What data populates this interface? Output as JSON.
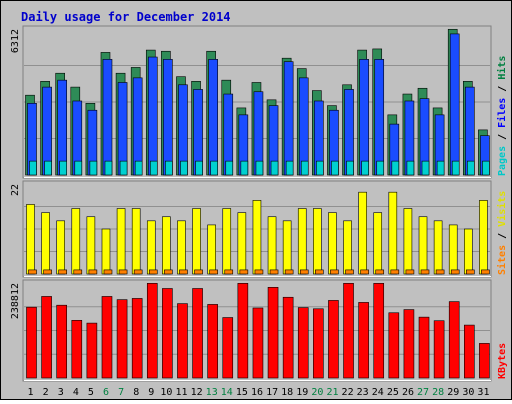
{
  "chart_data": {
    "type": "bar",
    "title": "Daily usage for December 2014",
    "categories": [
      "1",
      "2",
      "3",
      "4",
      "5",
      "6",
      "7",
      "8",
      "9",
      "10",
      "11",
      "12",
      "13",
      "14",
      "15",
      "16",
      "17",
      "18",
      "19",
      "20",
      "21",
      "22",
      "23",
      "24",
      "25",
      "26",
      "27",
      "28",
      "29",
      "30",
      "31"
    ],
    "weekend_days": [
      6,
      7,
      13,
      14,
      20,
      21,
      27,
      28
    ],
    "panels": [
      {
        "name": "pages-files-hits",
        "ymax_label": "6312",
        "ylim": [
          0,
          6312
        ],
        "legend": [
          {
            "label": "Pages",
            "color": "#00c8c8"
          },
          {
            "label": "Files",
            "color": "#0000ff"
          },
          {
            "label": "Hits",
            "color": "#008040"
          }
        ],
        "series": [
          {
            "name": "Hits",
            "color": "#2e8b57",
            "values": [
              3450,
              4050,
              4400,
              3800,
              3100,
              5300,
              4400,
              4650,
              5400,
              5350,
              4250,
              4050,
              5350,
              4100,
              2900,
              4000,
              3250,
              5050,
              4600,
              3650,
              3000,
              3900,
              5400,
              5450,
              2600,
              3500,
              3750,
              2900,
              6300,
              4050,
              1950
            ]
          },
          {
            "name": "Files",
            "color": "#1a4cff",
            "values": [
              3100,
              3800,
              4100,
              3200,
              2800,
              5000,
              4000,
              4200,
              5100,
              5000,
              3900,
              3700,
              5000,
              3500,
              2600,
              3600,
              3000,
              4900,
              4200,
              3200,
              2800,
              3700,
              5000,
              5000,
              2200,
              3200,
              3300,
              2600,
              6100,
              3800,
              1700
            ]
          },
          {
            "name": "Pages",
            "color": "#00d0d0",
            "values": [
              200,
              200,
              200,
              200,
              200,
              200,
              200,
              200,
              200,
              200,
              200,
              200,
              200,
              200,
              200,
              200,
              200,
              200,
              200,
              200,
              200,
              200,
              200,
              200,
              200,
              200,
              200,
              200,
              200,
              200,
              200
            ]
          }
        ]
      },
      {
        "name": "sites-visits",
        "ymax_label": "22",
        "ylim": [
          0,
          22
        ],
        "legend": [
          {
            "label": "Sites",
            "color": "#ff8000"
          },
          {
            "label": "Visits",
            "color": "#e0e000"
          }
        ],
        "series": [
          {
            "name": "Visits",
            "color": "#ffff00",
            "values": [
              17,
              15,
              13,
              16,
              14,
              11,
              16,
              16,
              13,
              14,
              13,
              16,
              12,
              16,
              15,
              18,
              14,
              13,
              16,
              16,
              15,
              13,
              20,
              15,
              20,
              16,
              14,
              13,
              12,
              11,
              18
            ]
          },
          {
            "name": "Sites",
            "color": "#ff8000",
            "values": [
              1,
              1,
              1,
              1,
              1,
              1,
              1,
              1,
              1,
              1,
              1,
              1,
              1,
              1,
              1,
              1,
              1,
              1,
              1,
              1,
              1,
              1,
              1,
              1,
              1,
              1,
              1,
              1,
              1,
              1,
              1
            ]
          }
        ]
      },
      {
        "name": "kbytes",
        "ymax_label": "238812",
        "ylim": [
          0,
          238812
        ],
        "legend": [
          {
            "label": "KBytes",
            "color": "#ff0000"
          }
        ],
        "series": [
          {
            "name": "KBytes",
            "color": "#ff0000",
            "values": [
              178000,
              205000,
              183000,
              145000,
              138000,
              205000,
              197000,
              200000,
              238000,
              225000,
              187000,
              225000,
              185000,
              152000,
              238000,
              176000,
              228000,
              203000,
              177000,
              174000,
              195000,
              238000,
              190000,
              238000,
              164000,
              172000,
              153000,
              144000,
              192000,
              133000,
              87000
            ]
          }
        ]
      }
    ]
  }
}
